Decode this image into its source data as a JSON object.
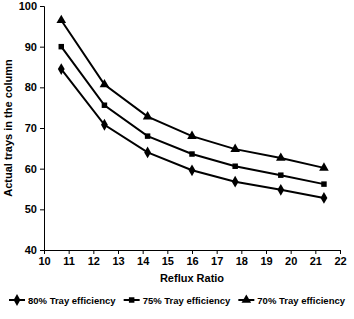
{
  "chart_data": {
    "type": "line",
    "x_label": "Reflux Ratio",
    "y_label": "Actual trays in the column",
    "xlim": [
      10,
      22
    ],
    "xticks": [
      10,
      11,
      12,
      13,
      14,
      15,
      16,
      17,
      18,
      19,
      20,
      21,
      22
    ],
    "ylim": [
      40,
      100
    ],
    "yticks": [
      40,
      50,
      60,
      70,
      80,
      90,
      100
    ],
    "grid": false,
    "legend": "bottom",
    "x": [
      10.7,
      12.45,
      14.2,
      16.0,
      17.75,
      19.6,
      21.35
    ],
    "series": [
      {
        "name": "80% Tray efficiency",
        "color": "#000000",
        "marker": "diamond",
        "line_style": "solid",
        "values": [
          84.5,
          70.8,
          64.0,
          59.6,
          56.8,
          54.8,
          52.8
        ]
      },
      {
        "name": "75% Tray efficiency",
        "color": "#000000",
        "marker": "square",
        "line_style": "solid",
        "values": [
          90.0,
          75.6,
          68.0,
          63.6,
          60.6,
          58.4,
          56.2
        ]
      },
      {
        "name": "70% Tray efficiency",
        "color": "#000000",
        "marker": "triangle",
        "line_style": "solid",
        "values": [
          96.5,
          80.7,
          72.8,
          68.0,
          64.8,
          62.6,
          60.2
        ]
      }
    ]
  }
}
